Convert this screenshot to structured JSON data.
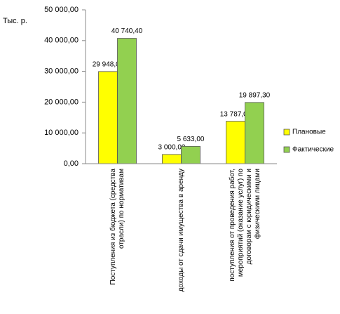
{
  "chart_data": {
    "type": "bar",
    "y_label": "Тыс. р.",
    "categories": [
      "Поступления из бюджета (средства отрасли) по нормативам",
      "доходы от сдачи имущества в аренду",
      "поступления от проведения работ, мероприятий (оказание услуг) по договорам с юридическими и физическими лицами"
    ],
    "series": [
      {
        "name": "Плановые",
        "color": "#ffff00",
        "values": [
          29948,
          3000,
          13787
        ],
        "value_labels": [
          "29 948,00",
          "3 000,00",
          "13 787,00"
        ]
      },
      {
        "name": "Фактические",
        "color": "#92d050",
        "values": [
          40740.4,
          5633,
          19897.3
        ],
        "value_labels": [
          "40 740,40",
          "5 633,00",
          "19 897,30"
        ]
      }
    ],
    "ylim": [
      0,
      50000
    ],
    "yticks": [
      {
        "value": 0,
        "label": "0,00"
      },
      {
        "value": 10000,
        "label": "10 000,00"
      },
      {
        "value": 20000,
        "label": "20 000,00"
      },
      {
        "value": 30000,
        "label": "30 000,00"
      },
      {
        "value": 40000,
        "label": "40 000,00"
      },
      {
        "value": 50000,
        "label": "50 000,00"
      }
    ],
    "legend": "right"
  }
}
